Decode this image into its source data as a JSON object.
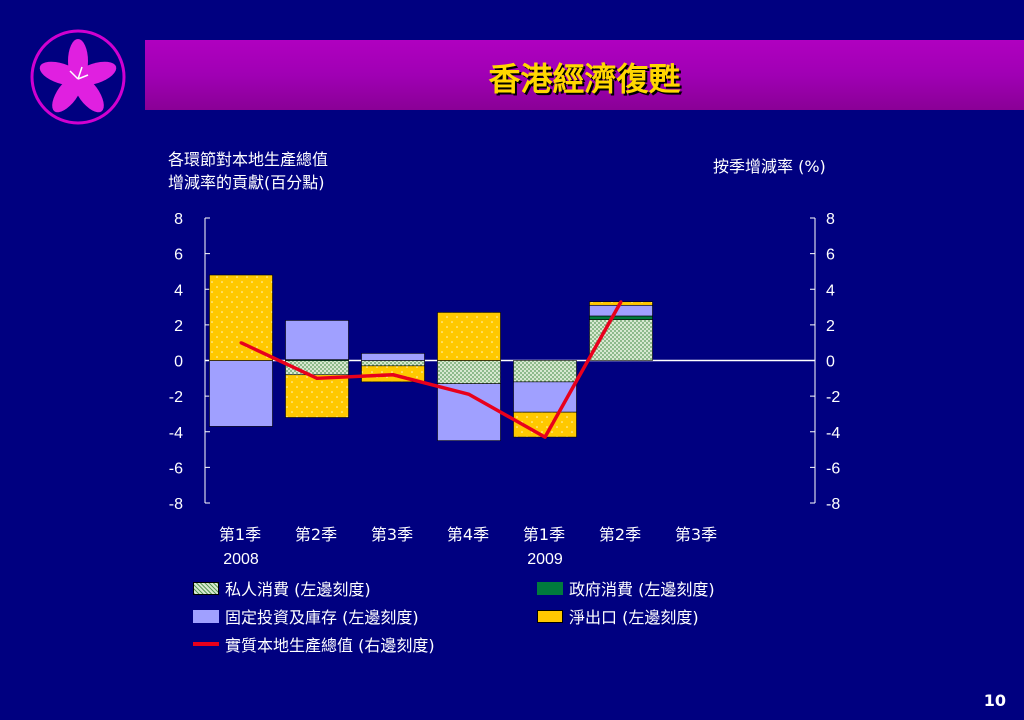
{
  "header": {
    "title": "香港經濟復甦"
  },
  "footer": {
    "page_number": "10"
  },
  "chart_data": {
    "type": "bar",
    "stacked": true,
    "left_axis_title": [
      "各環節對本地生產總值",
      "增減率的貢獻(百分點)"
    ],
    "right_axis_title": "按季增減率 (%)",
    "ylim": [
      -8,
      8
    ],
    "yticks": [
      "8",
      "6",
      "4",
      "2",
      "0",
      "-2",
      "-4",
      "-6",
      "-8"
    ],
    "categories": [
      "第1季",
      "第2季",
      "第3季",
      "第4季",
      "第1季",
      "第2季",
      "第3季"
    ],
    "years": [
      {
        "label": "2008",
        "category_index": 0
      },
      {
        "label": "2009",
        "category_index": 4
      }
    ],
    "series": [
      {
        "name": "私人消費 (左邊刻度)",
        "axis": "left",
        "kind": "bar",
        "pattern": "dots-green",
        "values": [
          0,
          -0.8,
          -0.3,
          -1.3,
          -1.2,
          2.3,
          null
        ]
      },
      {
        "name": "政府消費 (左邊刻度)",
        "axis": "left",
        "kind": "bar",
        "pattern": "solid-green",
        "values": [
          0,
          0.05,
          0,
          0,
          0,
          0.2,
          null
        ]
      },
      {
        "name": "固定投資及庫存 (左邊刻度)",
        "axis": "left",
        "kind": "bar",
        "pattern": "solid-lavender",
        "values": [
          -3.7,
          2.2,
          0.4,
          -3.2,
          -1.7,
          0.6,
          null
        ]
      },
      {
        "name": "淨出口 (左邊刻度)",
        "axis": "left",
        "kind": "bar",
        "pattern": "dots-yellow",
        "values": [
          4.8,
          -2.4,
          -0.9,
          2.7,
          -1.4,
          0.2,
          null
        ]
      },
      {
        "name": "實質本地生產總值 (右邊刻度)",
        "axis": "right",
        "kind": "line",
        "color": "#e8001c",
        "values": [
          1.0,
          -1.0,
          -0.8,
          -1.9,
          -4.3,
          3.3,
          null
        ]
      }
    ]
  },
  "legend_layout": [
    {
      "series_index": 0
    },
    {
      "series_index": 1
    },
    {
      "series_index": 2
    },
    {
      "series_index": 3
    },
    {
      "series_index": 4
    }
  ]
}
